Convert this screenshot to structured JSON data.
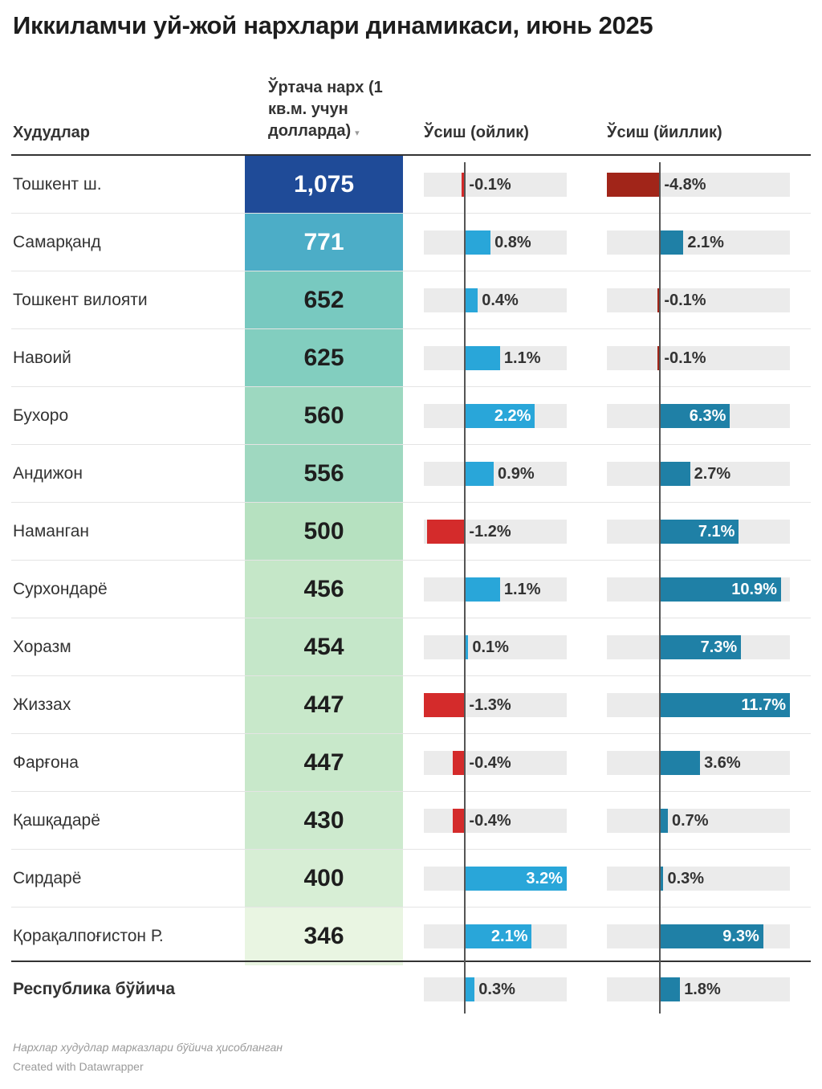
{
  "title": "Иккиламчи уй-жой нархлари динамикаси, июнь 2025",
  "columns": {
    "region": "Худудлар",
    "price": "Ўртача нарх (1 кв.м. учун долларда)",
    "sort_glyph": "▾",
    "monthly": "Ўсиш (ойлик)",
    "yearly": "Ўсиш (йиллик)"
  },
  "colors": {
    "price_scale": [
      "#e9f5e2",
      "#b9e2c0",
      "#7dccbf",
      "#47aac8",
      "#2c7fbd",
      "#1f4b98"
    ],
    "monthly_positive": "#29a6d9",
    "monthly_negative": "#d42b2b",
    "yearly_positive": "#1f80a6",
    "yearly_negative": "#a12519"
  },
  "rows": [
    {
      "region": "Тошкент ш.",
      "price": "1,075",
      "monthly": "-0.1%",
      "yearly": "-4.8%"
    },
    {
      "region": "Самарқанд",
      "price": "771",
      "monthly": "0.8%",
      "yearly": "2.1%"
    },
    {
      "region": "Тошкент вилояти",
      "price": "652",
      "monthly": "0.4%",
      "yearly": "-0.1%"
    },
    {
      "region": "Навоий",
      "price": "625",
      "monthly": "1.1%",
      "yearly": "-0.1%"
    },
    {
      "region": "Бухоро",
      "price": "560",
      "monthly": "2.2%",
      "yearly": "6.3%"
    },
    {
      "region": "Андижон",
      "price": "556",
      "monthly": "0.9%",
      "yearly": "2.7%"
    },
    {
      "region": "Наманган",
      "price": "500",
      "monthly": "-1.2%",
      "yearly": "7.1%"
    },
    {
      "region": "Сурхондарё",
      "price": "456",
      "monthly": "1.1%",
      "yearly": "10.9%"
    },
    {
      "region": "Хоразм",
      "price": "454",
      "monthly": "0.1%",
      "yearly": "7.3%"
    },
    {
      "region": "Жиззах",
      "price": "447",
      "monthly": "-1.3%",
      "yearly": "11.7%"
    },
    {
      "region": "Фарғона",
      "price": "447",
      "monthly": "-0.4%",
      "yearly": "3.6%"
    },
    {
      "region": "Қашқадарё",
      "price": "430",
      "monthly": "-0.4%",
      "yearly": "0.7%"
    },
    {
      "region": "Сирдарё",
      "price": "400",
      "monthly": "3.2%",
      "yearly": "0.3%"
    },
    {
      "region": "Қорақалпоғистон Р.",
      "price": "346",
      "monthly": "2.1%",
      "yearly": "9.3%"
    }
  ],
  "total": {
    "region": "Республика бўйича",
    "monthly": "0.3%",
    "yearly": "1.8%"
  },
  "notes": {
    "source": "Нархлар худудлар марказлари бўйича ҳисобланган",
    "credit": "Created with Datawrapper"
  },
  "chart_data": {
    "type": "table",
    "columns": [
      "Худудлар",
      "Ўртача нарх (1 кв.м. учун долларда)",
      "Ўсиш (ойлик)",
      "Ўсиш (йиллик)"
    ],
    "price_usd_per_sqm": [
      1075,
      771,
      652,
      625,
      560,
      556,
      500,
      456,
      454,
      447,
      447,
      430,
      400,
      346
    ],
    "monthly_growth_pct": [
      -0.1,
      0.8,
      0.4,
      1.1,
      2.2,
      0.9,
      -1.2,
      1.1,
      0.1,
      -1.3,
      -0.4,
      -0.4,
      3.2,
      2.1
    ],
    "yearly_growth_pct": [
      -4.8,
      2.1,
      -0.1,
      -0.1,
      6.3,
      2.7,
      7.1,
      10.9,
      7.3,
      11.7,
      3.6,
      0.7,
      0.3,
      9.3
    ],
    "total_monthly_pct": 0.3,
    "total_yearly_pct": 1.8,
    "monthly_range": [
      -1.3,
      3.2
    ],
    "yearly_range": [
      -4.8,
      11.7
    ]
  }
}
